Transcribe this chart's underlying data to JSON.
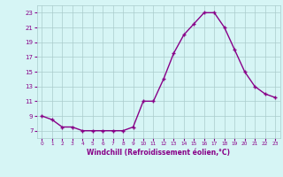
{
  "x": [
    0,
    1,
    2,
    3,
    4,
    5,
    6,
    7,
    8,
    9,
    10,
    11,
    12,
    13,
    14,
    15,
    16,
    17,
    18,
    19,
    20,
    21,
    22,
    23
  ],
  "y": [
    9,
    8.5,
    7.5,
    7.5,
    7,
    7,
    7,
    7,
    7,
    7.5,
    11,
    11,
    14,
    17.5,
    20,
    21.5,
    23,
    23,
    21,
    18,
    15,
    13,
    12,
    11.5
  ],
  "line_color": "#880088",
  "marker": "+",
  "bg_color": "#d6f5f5",
  "grid_color": "#aacccc",
  "axis_color": "#880088",
  "xlabel": "Windchill (Refroidissement éolien,°C)",
  "ylim": [
    6,
    24
  ],
  "yticks": [
    7,
    9,
    11,
    13,
    15,
    17,
    19,
    21,
    23
  ],
  "xlim": [
    -0.5,
    23.5
  ],
  "xticks": [
    0,
    1,
    2,
    3,
    4,
    5,
    6,
    7,
    8,
    9,
    10,
    11,
    12,
    13,
    14,
    15,
    16,
    17,
    18,
    19,
    20,
    21,
    22,
    23
  ]
}
